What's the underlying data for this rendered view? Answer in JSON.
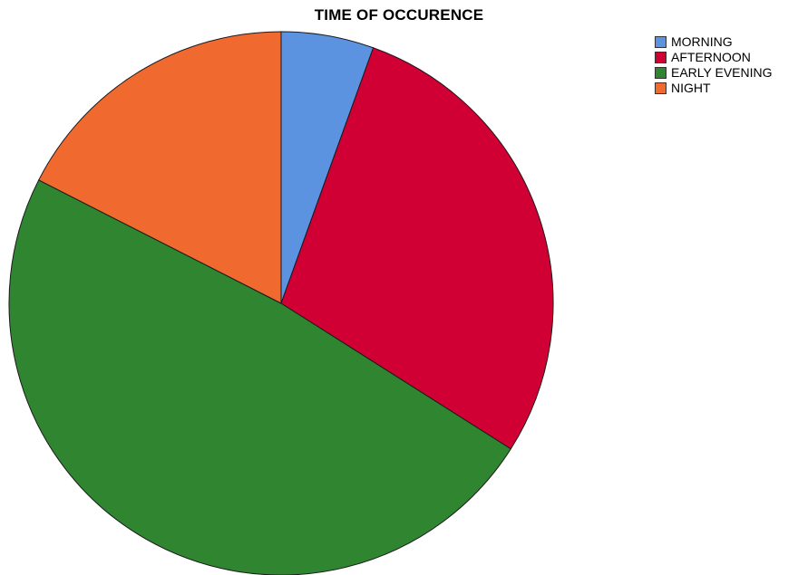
{
  "chart_data": {
    "type": "pie",
    "title": "TIME OF OCCURENCE",
    "categories": [
      "MORNING",
      "AFTERNOON",
      "EARLY EVENING",
      "NIGHT"
    ],
    "values": [
      5.5,
      28.5,
      48.5,
      17.5
    ],
    "colors": [
      "#5b93e0",
      "#d10034",
      "#2f8530",
      "#f0692e"
    ],
    "start_angle": "12 o'clock",
    "direction": "clockwise",
    "legend_position": "top-right"
  }
}
